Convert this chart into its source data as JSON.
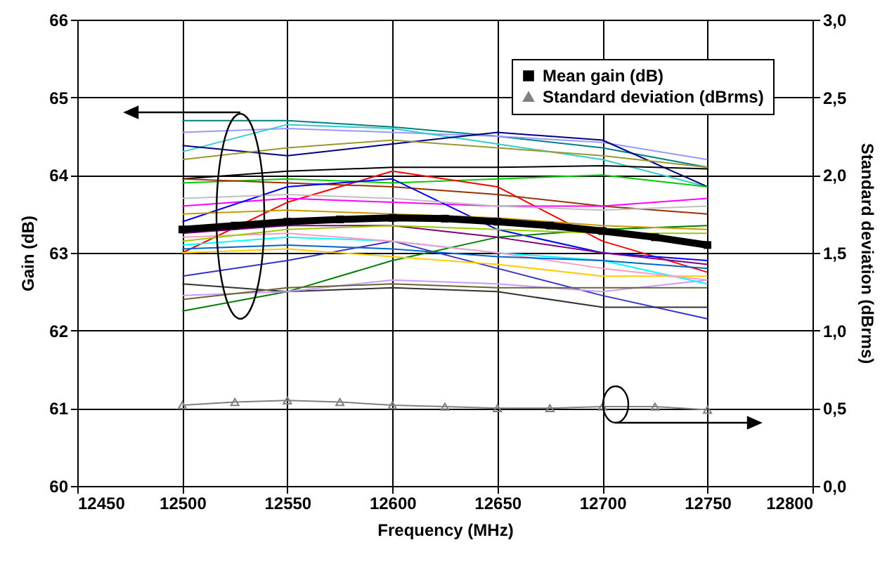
{
  "chart_data": {
    "type": "line",
    "xlabel": "Frequency (MHz)",
    "ylabel": "Gain (dB)",
    "y2label": "Standard deviation (dBrms)",
    "x": [
      12500,
      12550,
      12600,
      12650,
      12700,
      12750
    ],
    "xlim": [
      12450,
      12800
    ],
    "xticks": [
      12450,
      12500,
      12550,
      12600,
      12650,
      12700,
      12750,
      12800
    ],
    "ylim": [
      60,
      66
    ],
    "yticks": [
      60,
      61,
      62,
      63,
      64,
      65,
      66
    ],
    "y2lim": [
      0,
      3
    ],
    "y2ticks": [
      {
        "value": 0,
        "label": "0,0"
      },
      {
        "value": 0.5,
        "label": "0,5"
      },
      {
        "value": 1,
        "label": "1,0"
      },
      {
        "value": 1.5,
        "label": "1,5"
      },
      {
        "value": 2,
        "label": "2,0"
      },
      {
        "value": 2.5,
        "label": "2,5"
      },
      {
        "value": 3,
        "label": "3,0"
      }
    ],
    "grid": true,
    "legend": "top right",
    "series": [
      {
        "color": "#008080",
        "values": [
          64.7,
          64.7,
          64.62,
          64.5,
          64.35,
          64.1
        ]
      },
      {
        "color": "#9999ff",
        "values": [
          64.55,
          64.6,
          64.55,
          64.5,
          64.42,
          64.2
        ]
      },
      {
        "color": "#33cccc",
        "values": [
          64.3,
          64.65,
          64.6,
          64.4,
          64.2,
          63.85
        ]
      },
      {
        "color": "#000080",
        "values": [
          64.38,
          64.25,
          64.4,
          64.55,
          64.45,
          63.85
        ]
      },
      {
        "color": "#999933",
        "values": [
          64.2,
          64.35,
          64.45,
          64.35,
          64.25,
          64.1
        ]
      },
      {
        "color": "#000000",
        "values": [
          63.95,
          64.05,
          64.1,
          64.1,
          64.12,
          64.08
        ]
      },
      {
        "color": "#00cc00",
        "values": [
          63.9,
          63.95,
          63.9,
          63.95,
          64.0,
          63.85
        ]
      },
      {
        "color": "#ff0000",
        "values": [
          63.0,
          63.65,
          64.05,
          63.85,
          63.15,
          62.75
        ]
      },
      {
        "color": "#993300",
        "values": [
          63.95,
          63.9,
          63.85,
          63.75,
          63.6,
          63.5
        ]
      },
      {
        "color": "#ff00ff",
        "values": [
          63.6,
          63.7,
          63.65,
          63.6,
          63.6,
          63.7
        ]
      },
      {
        "color": "#0000ff",
        "values": [
          63.4,
          63.85,
          63.95,
          63.3,
          63.0,
          62.9
        ]
      },
      {
        "color": "#3333cc",
        "values": [
          62.7,
          62.9,
          63.15,
          62.8,
          62.45,
          62.15
        ]
      },
      {
        "color": "#008000",
        "values": [
          62.25,
          62.5,
          62.9,
          63.2,
          63.3,
          63.35
        ]
      },
      {
        "color": "#333333",
        "values": [
          62.6,
          62.5,
          62.55,
          62.5,
          62.3,
          62.3
        ]
      },
      {
        "color": "#cc99ff",
        "values": [
          62.45,
          62.5,
          62.65,
          62.6,
          62.5,
          62.65
        ]
      },
      {
        "color": "#666633",
        "values": [
          62.4,
          62.55,
          62.6,
          62.55,
          62.55,
          62.55
        ]
      },
      {
        "color": "#c0c0c0",
        "values": [
          63.7,
          63.75,
          63.7,
          63.6,
          63.55,
          63.6
        ]
      },
      {
        "color": "#ffcc00",
        "values": [
          63.0,
          63.05,
          62.95,
          62.85,
          62.7,
          62.7
        ]
      },
      {
        "color": "#00ffff",
        "values": [
          63.1,
          63.2,
          63.15,
          63.0,
          62.9,
          62.6
        ]
      },
      {
        "color": "#800080",
        "values": [
          63.25,
          63.35,
          63.35,
          63.2,
          63.0,
          62.85
        ]
      },
      {
        "color": "#ff99cc",
        "values": [
          63.2,
          63.25,
          63.15,
          63.0,
          62.8,
          62.65
        ]
      },
      {
        "color": "#cc9900",
        "values": [
          63.5,
          63.55,
          63.5,
          63.45,
          63.35,
          63.3
        ]
      },
      {
        "color": "#99cc00",
        "values": [
          63.15,
          63.3,
          63.35,
          63.3,
          63.25,
          63.25
        ]
      },
      {
        "color": "#0066cc",
        "values": [
          63.05,
          63.1,
          63.05,
          62.95,
          62.9,
          62.8
        ]
      },
      {
        "name": "Mean gain (dB)",
        "color": "#000000",
        "marker": "square",
        "x": [
          12500,
          12525,
          12550,
          12575,
          12600,
          12625,
          12650,
          12675,
          12700,
          12725,
          12750
        ],
        "values": [
          63.3,
          63.35,
          63.4,
          63.43,
          63.45,
          63.44,
          63.4,
          63.35,
          63.28,
          63.2,
          63.1
        ]
      },
      {
        "name": "Standard deviation (dBrms)",
        "color": "#808080",
        "marker": "triangle",
        "axis": "y2",
        "x": [
          12500,
          12525,
          12550,
          12575,
          12600,
          12625,
          12650,
          12675,
          12700,
          12725,
          12750
        ],
        "values": [
          0.52,
          0.54,
          0.55,
          0.54,
          0.52,
          0.51,
          0.5,
          0.5,
          0.51,
          0.51,
          0.49
        ]
      }
    ]
  }
}
